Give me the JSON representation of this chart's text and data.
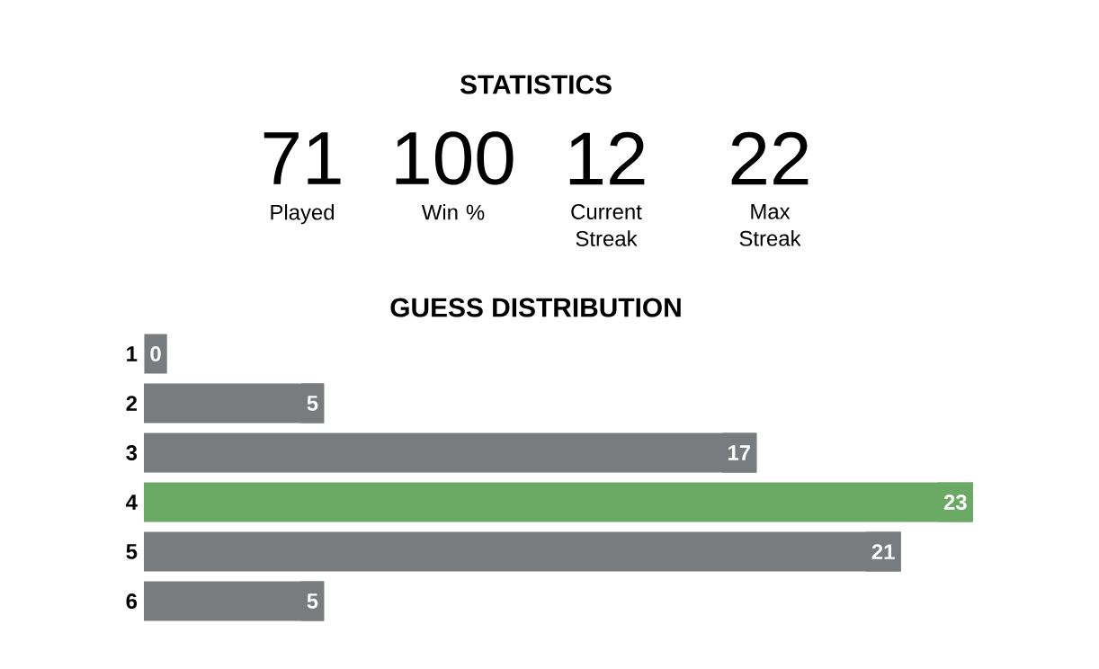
{
  "chart_data": [
    {
      "type": "other",
      "title": "STATISTICS",
      "annotations": [
        "71",
        "Played",
        "100",
        "Win %",
        "12",
        "Current Streak",
        "22",
        "Max Streak"
      ]
    },
    {
      "type": "bar",
      "orientation": "horizontal",
      "title": "GUESS DISTRIBUTION",
      "data_labels": true,
      "categories": [
        "1",
        "2",
        "3",
        "4",
        "5",
        "6"
      ],
      "values": [
        0,
        5,
        17,
        23,
        21,
        5
      ],
      "colors": [
        "#787c7e",
        "#787c7e",
        "#787c7e",
        "#6aaa64",
        "#787c7e",
        "#787c7e"
      ]
    }
  ]
}
